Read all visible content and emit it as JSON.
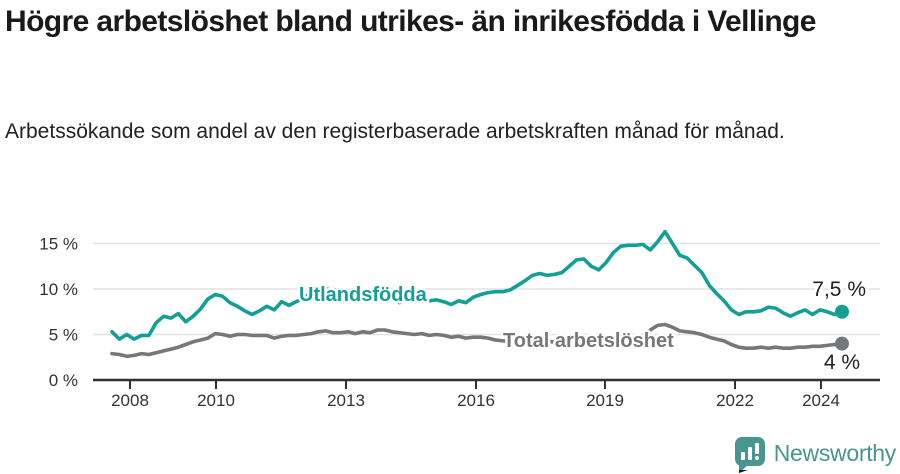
{
  "header": {
    "title": "Högre arbetslöshet bland utrikes- än inrikesfödda i Vellinge",
    "subtitle": "Arbetssökande som andel av den registerbaserade arbetskraften månad för månad."
  },
  "chart_data": {
    "type": "line",
    "title": "Högre arbetslöshet bland utrikes- än inrikesfödda i Vellinge",
    "subtitle": "Arbetssökande som andel av den registerbaserade arbetskraften månad för månad.",
    "unit": "%",
    "grid": "horizontal",
    "x_axis": {
      "tick_labels": [
        "2008",
        "2010",
        "2013",
        "2016",
        "2019",
        "2022",
        "2024"
      ],
      "x_start_year": 2008.0,
      "x_end_year": 2024.6,
      "note": "series values are evenly spaced in time from x_start_year to x_end_year"
    },
    "y_axis": {
      "tick_values": [
        0,
        5,
        10,
        15
      ],
      "tick_labels": [
        "0 %",
        "5 %",
        "10 %",
        "15 %"
      ],
      "ylim": [
        0,
        17
      ]
    },
    "series": [
      {
        "name": "Utlandsfödda",
        "color": "#149e96",
        "end_label": "7,5 %",
        "end_value": 7.5,
        "values": [
          5.3,
          4.5,
          5.0,
          4.5,
          4.9,
          4.9,
          6.3,
          7.0,
          6.8,
          7.3,
          6.4,
          7.0,
          7.8,
          8.9,
          9.4,
          9.2,
          8.5,
          8.1,
          7.6,
          7.2,
          7.6,
          8.1,
          7.7,
          8.6,
          8.2,
          8.6,
          9.0,
          9.6,
          9.9,
          10.0,
          9.9,
          9.9,
          9.8,
          9.6,
          9.5,
          9.6,
          9.3,
          9.2,
          8.9,
          8.5,
          8.9,
          8.6,
          8.9,
          8.7,
          8.8,
          8.6,
          8.3,
          8.7,
          8.5,
          9.1,
          9.4,
          9.6,
          9.7,
          9.7,
          9.9,
          10.4,
          10.9,
          11.5,
          11.7,
          11.5,
          11.6,
          11.8,
          12.5,
          13.2,
          13.3,
          12.5,
          12.1,
          12.9,
          14.0,
          14.7,
          14.8,
          14.8,
          14.9,
          14.3,
          15.2,
          16.3,
          15.0,
          13.7,
          13.4,
          12.6,
          11.8,
          10.4,
          9.5,
          8.7,
          7.7,
          7.2,
          7.5,
          7.5,
          7.6,
          8.0,
          7.9,
          7.4,
          7.0,
          7.4,
          7.7,
          7.2,
          7.7,
          7.5,
          7.2,
          7.5
        ]
      },
      {
        "name": "Total arbetslöshet",
        "color": "#76777a",
        "end_label": "4 %",
        "end_value": 4,
        "values": [
          2.9,
          2.8,
          2.6,
          2.7,
          2.9,
          2.8,
          3.0,
          3.2,
          3.4,
          3.6,
          3.9,
          4.2,
          4.4,
          4.6,
          5.1,
          5.0,
          4.8,
          5.0,
          5.0,
          4.9,
          4.9,
          4.9,
          4.6,
          4.8,
          4.9,
          4.9,
          5.0,
          5.1,
          5.3,
          5.4,
          5.2,
          5.2,
          5.3,
          5.1,
          5.3,
          5.2,
          5.5,
          5.5,
          5.3,
          5.2,
          5.1,
          5.0,
          5.1,
          4.9,
          5.0,
          4.9,
          4.7,
          4.8,
          4.6,
          4.7,
          4.7,
          4.6,
          4.4,
          4.3,
          4.3,
          4.2,
          4.3,
          4.2,
          4.3,
          4.2,
          4.2,
          4.3,
          4.2,
          4.3,
          4.2,
          4.3,
          4.2,
          4.3,
          4.3,
          4.4,
          4.5,
          4.6,
          4.9,
          5.5,
          6.0,
          6.1,
          5.8,
          5.4,
          5.3,
          5.2,
          5.0,
          4.7,
          4.5,
          4.3,
          3.9,
          3.6,
          3.5,
          3.5,
          3.6,
          3.5,
          3.6,
          3.5,
          3.5,
          3.6,
          3.6,
          3.7,
          3.7,
          3.8,
          3.9,
          4.0
        ]
      }
    ],
    "colors": {
      "grid": "#e2e2e2",
      "axis": "#2f3030",
      "text": "#333333",
      "accent_teal": "#149e96",
      "gray": "#76777a"
    }
  },
  "footer": {
    "brand": "Newsworthy",
    "brand_color": "#48968f"
  }
}
